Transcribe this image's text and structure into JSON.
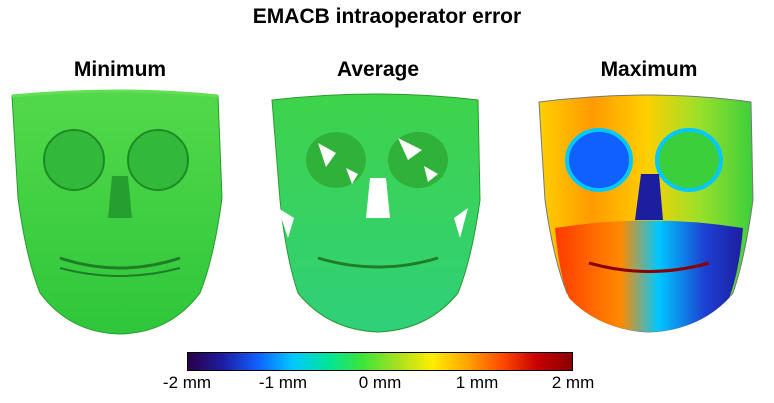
{
  "title": "EMACB intraoperator error",
  "panels": [
    {
      "label": "Minimum",
      "icon": "skull-surface-icon"
    },
    {
      "label": "Average",
      "icon": "skull-surface-icon"
    },
    {
      "label": "Maximum",
      "icon": "skull-surface-icon"
    }
  ],
  "colorbar": {
    "colors": [
      "#2a0048",
      "#1d1da0",
      "#1060ff",
      "#00c8ff",
      "#00e59a",
      "#3ce43a",
      "#a8e020",
      "#ffee00",
      "#ffa400",
      "#ff4a00",
      "#c80000",
      "#8a0000"
    ],
    "ticks": [
      "-2 mm",
      "-1 mm",
      "0 mm",
      "1 mm",
      "2 mm"
    ]
  },
  "colors": {
    "zero_green": "#3ccf3c",
    "dark_green": "#1f9a2a"
  }
}
